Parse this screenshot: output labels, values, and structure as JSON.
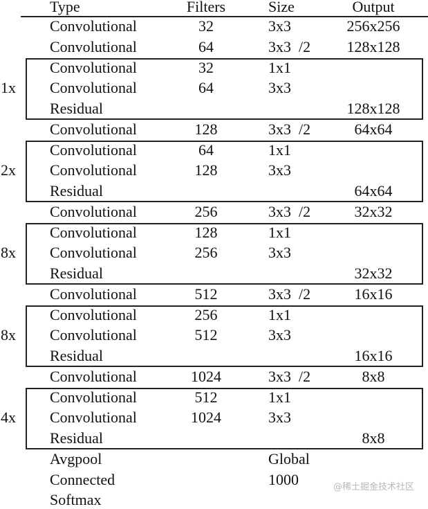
{
  "header": {
    "type": "Type",
    "filters": "Filters",
    "size": "Size",
    "output": "Output"
  },
  "rows": [
    {
      "type": "Convolutional",
      "filters": "32",
      "size": "3x3",
      "output": "256x256"
    },
    {
      "type": "Convolutional",
      "filters": "64",
      "size": "3x3  /2",
      "output": "128x128"
    },
    {
      "type": "Convolutional",
      "filters": "32",
      "size": "1x1",
      "output": ""
    },
    {
      "type": "Convolutional",
      "filters": "64",
      "size": "3x3",
      "output": ""
    },
    {
      "type": "Residual",
      "filters": "",
      "size": "",
      "output": "128x128"
    },
    {
      "type": "Convolutional",
      "filters": "128",
      "size": "3x3  /2",
      "output": "64x64"
    },
    {
      "type": "Convolutional",
      "filters": "64",
      "size": "1x1",
      "output": ""
    },
    {
      "type": "Convolutional",
      "filters": "128",
      "size": "3x3",
      "output": ""
    },
    {
      "type": "Residual",
      "filters": "",
      "size": "",
      "output": "64x64"
    },
    {
      "type": "Convolutional",
      "filters": "256",
      "size": "3x3  /2",
      "output": "32x32"
    },
    {
      "type": "Convolutional",
      "filters": "128",
      "size": "1x1",
      "output": ""
    },
    {
      "type": "Convolutional",
      "filters": "256",
      "size": "3x3",
      "output": ""
    },
    {
      "type": "Residual",
      "filters": "",
      "size": "",
      "output": "32x32"
    },
    {
      "type": "Convolutional",
      "filters": "512",
      "size": "3x3  /2",
      "output": "16x16"
    },
    {
      "type": "Convolutional",
      "filters": "256",
      "size": "1x1",
      "output": ""
    },
    {
      "type": "Convolutional",
      "filters": "512",
      "size": "3x3",
      "output": ""
    },
    {
      "type": "Residual",
      "filters": "",
      "size": "",
      "output": "16x16"
    },
    {
      "type": "Convolutional",
      "filters": "1024",
      "size": "3x3  /2",
      "output": "8x8"
    },
    {
      "type": "Convolutional",
      "filters": "512",
      "size": "1x1",
      "output": ""
    },
    {
      "type": "Convolutional",
      "filters": "1024",
      "size": "3x3",
      "output": ""
    },
    {
      "type": "Residual",
      "filters": "",
      "size": "",
      "output": "8x8"
    },
    {
      "type": "Avgpool",
      "filters": "",
      "size": "Global",
      "output": ""
    },
    {
      "type": "Connected",
      "filters": "",
      "size": "1000",
      "output": ""
    },
    {
      "type": "Softmax",
      "filters": "",
      "size": "",
      "output": ""
    }
  ],
  "blocks": [
    {
      "multiplier": "1x",
      "first_row": 2,
      "last_row": 4
    },
    {
      "multiplier": "2x",
      "first_row": 6,
      "last_row": 8
    },
    {
      "multiplier": "8x",
      "first_row": 10,
      "last_row": 12
    },
    {
      "multiplier": "8x",
      "first_row": 14,
      "last_row": 16
    },
    {
      "multiplier": "4x",
      "first_row": 18,
      "last_row": 20
    }
  ],
  "watermark": "@稀土掘金技术社区"
}
